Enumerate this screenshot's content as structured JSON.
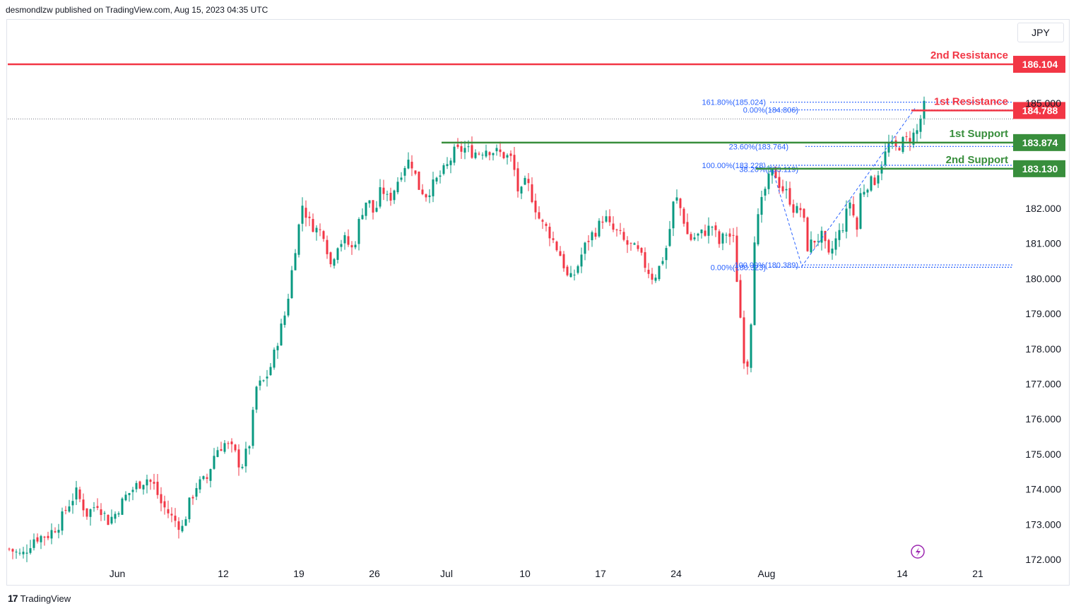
{
  "header": {
    "published_by": "desmondlzw published on TradingView.com, Aug 15, 2023 04:35 UTC"
  },
  "currency": "JPY",
  "brand": {
    "logo_glyph": "17",
    "name": "TradingView"
  },
  "colors": {
    "resistance": "#f23645",
    "support": "#388e3c",
    "up_candle": "#089981",
    "down_candle": "#f23645",
    "fib": "#2962ff",
    "grid_dots": "#787b86"
  },
  "chart_data": {
    "type": "candlestick",
    "y_axis_labels": [
      "186.104",
      "185.000",
      "184.788",
      "183.874",
      "183.130",
      "182.000",
      "181.000",
      "180.000",
      "179.000",
      "178.000",
      "177.000",
      "176.000",
      "175.000",
      "174.000",
      "173.000",
      "172.000"
    ],
    "x_axis_labels": [
      "Jun",
      "12",
      "19",
      "26",
      "Jul",
      "10",
      "17",
      "24",
      "Aug",
      "14",
      "21"
    ],
    "ylim": [
      171.9,
      188.2
    ],
    "levels": [
      {
        "label": "2nd Resistance",
        "value": "186.104",
        "kind": "resistance"
      },
      {
        "label": "1st Resistance",
        "value": "184.788",
        "kind": "resistance"
      },
      {
        "label": "1st Support",
        "value": "183.874",
        "kind": "support"
      },
      {
        "label": "2nd Support",
        "value": "183.130",
        "kind": "support"
      }
    ],
    "fib_labels": [
      {
        "text": "161.80%(185.024)",
        "value": 185.024
      },
      {
        "text": "0.00%(184.806)",
        "value": 184.806
      },
      {
        "text": "23.60%(183.764)",
        "value": 183.764
      },
      {
        "text": "100.00%(183.228)",
        "value": 183.228
      },
      {
        "text": "38.20%(183.119)",
        "value": 183.119
      },
      {
        "text": "0.00%(180.323)",
        "value": 180.323
      },
      {
        "text": "100.00%(180.389)",
        "value": 180.389
      }
    ],
    "last_price": 184.788,
    "close_path": [
      [
        0,
        172.3
      ],
      [
        18,
        172.1
      ],
      [
        35,
        172.6
      ],
      [
        55,
        172.7
      ],
      [
        70,
        173.0
      ],
      [
        82,
        173.5
      ],
      [
        95,
        173.9
      ],
      [
        110,
        173.3
      ],
      [
        125,
        173.6
      ],
      [
        140,
        173.1
      ],
      [
        150,
        173.3
      ],
      [
        165,
        173.8
      ],
      [
        180,
        174.1
      ],
      [
        195,
        174.3
      ],
      [
        205,
        174.1
      ],
      [
        215,
        173.6
      ],
      [
        230,
        173.2
      ],
      [
        245,
        172.9
      ],
      [
        255,
        173.6
      ],
      [
        265,
        174.1
      ],
      [
        280,
        174.3
      ],
      [
        292,
        175.1
      ],
      [
        305,
        175.3
      ],
      [
        318,
        175.1
      ],
      [
        328,
        174.6
      ],
      [
        340,
        175.3
      ],
      [
        350,
        176.9
      ],
      [
        362,
        177.1
      ],
      [
        372,
        177.6
      ],
      [
        382,
        178.4
      ],
      [
        392,
        179.1
      ],
      [
        405,
        180.9
      ],
      [
        415,
        182.1
      ],
      [
        425,
        181.6
      ],
      [
        435,
        181.4
      ],
      [
        445,
        181.3
      ],
      [
        455,
        180.4
      ],
      [
        465,
        181.0
      ],
      [
        475,
        181.1
      ],
      [
        487,
        180.8
      ],
      [
        497,
        181.8
      ],
      [
        507,
        182.3
      ],
      [
        517,
        181.8
      ],
      [
        527,
        182.6
      ],
      [
        537,
        182.2
      ],
      [
        548,
        182.7
      ],
      [
        558,
        183.2
      ],
      [
        568,
        183.4
      ],
      [
        580,
        182.6
      ],
      [
        590,
        182.4
      ],
      [
        605,
        182.8
      ],
      [
        620,
        183.2
      ],
      [
        630,
        183.6
      ],
      [
        645,
        183.7
      ],
      [
        655,
        183.6
      ],
      [
        665,
        183.6
      ],
      [
        675,
        183.7
      ],
      [
        690,
        183.6
      ],
      [
        702,
        183.5
      ],
      [
        712,
        183.4
      ],
      [
        722,
        182.3
      ],
      [
        732,
        182.8
      ],
      [
        742,
        182.2
      ],
      [
        752,
        181.6
      ],
      [
        762,
        181.4
      ],
      [
        772,
        181.0
      ],
      [
        782,
        180.6
      ],
      [
        792,
        179.9
      ],
      [
        802,
        180.2
      ],
      [
        812,
        180.8
      ],
      [
        822,
        181.2
      ],
      [
        832,
        181.4
      ],
      [
        842,
        181.8
      ],
      [
        852,
        181.4
      ],
      [
        862,
        181.3
      ],
      [
        872,
        181.0
      ],
      [
        882,
        180.9
      ],
      [
        892,
        180.7
      ],
      [
        902,
        180.3
      ],
      [
        912,
        180.0
      ],
      [
        922,
        180.4
      ],
      [
        932,
        181.0
      ],
      [
        942,
        182.4
      ],
      [
        952,
        181.9
      ],
      [
        962,
        181.1
      ],
      [
        972,
        181.2
      ],
      [
        982,
        181.3
      ],
      [
        995,
        181.5
      ],
      [
        1005,
        181.0
      ],
      [
        1015,
        181.3
      ],
      [
        1025,
        181.1
      ],
      [
        1035,
        178.9
      ],
      [
        1042,
        177.3
      ],
      [
        1048,
        177.9
      ],
      [
        1055,
        181.2
      ],
      [
        1063,
        182.0
      ],
      [
        1072,
        182.7
      ],
      [
        1082,
        183.1
      ],
      [
        1092,
        182.6
      ],
      [
        1102,
        182.4
      ],
      [
        1112,
        181.9
      ],
      [
        1122,
        182.0
      ],
      [
        1130,
        180.9
      ],
      [
        1140,
        181.1
      ],
      [
        1150,
        181.2
      ],
      [
        1160,
        180.6
      ],
      [
        1170,
        181.1
      ],
      [
        1180,
        181.5
      ],
      [
        1190,
        182.2
      ],
      [
        1200,
        181.4
      ],
      [
        1205,
        182.4
      ],
      [
        1215,
        182.7
      ],
      [
        1225,
        182.8
      ],
      [
        1235,
        183.3
      ],
      [
        1245,
        183.8
      ],
      [
        1255,
        183.7
      ],
      [
        1265,
        183.9
      ],
      [
        1275,
        184.0
      ],
      [
        1285,
        184.2
      ],
      [
        1295,
        184.9
      ]
    ]
  }
}
